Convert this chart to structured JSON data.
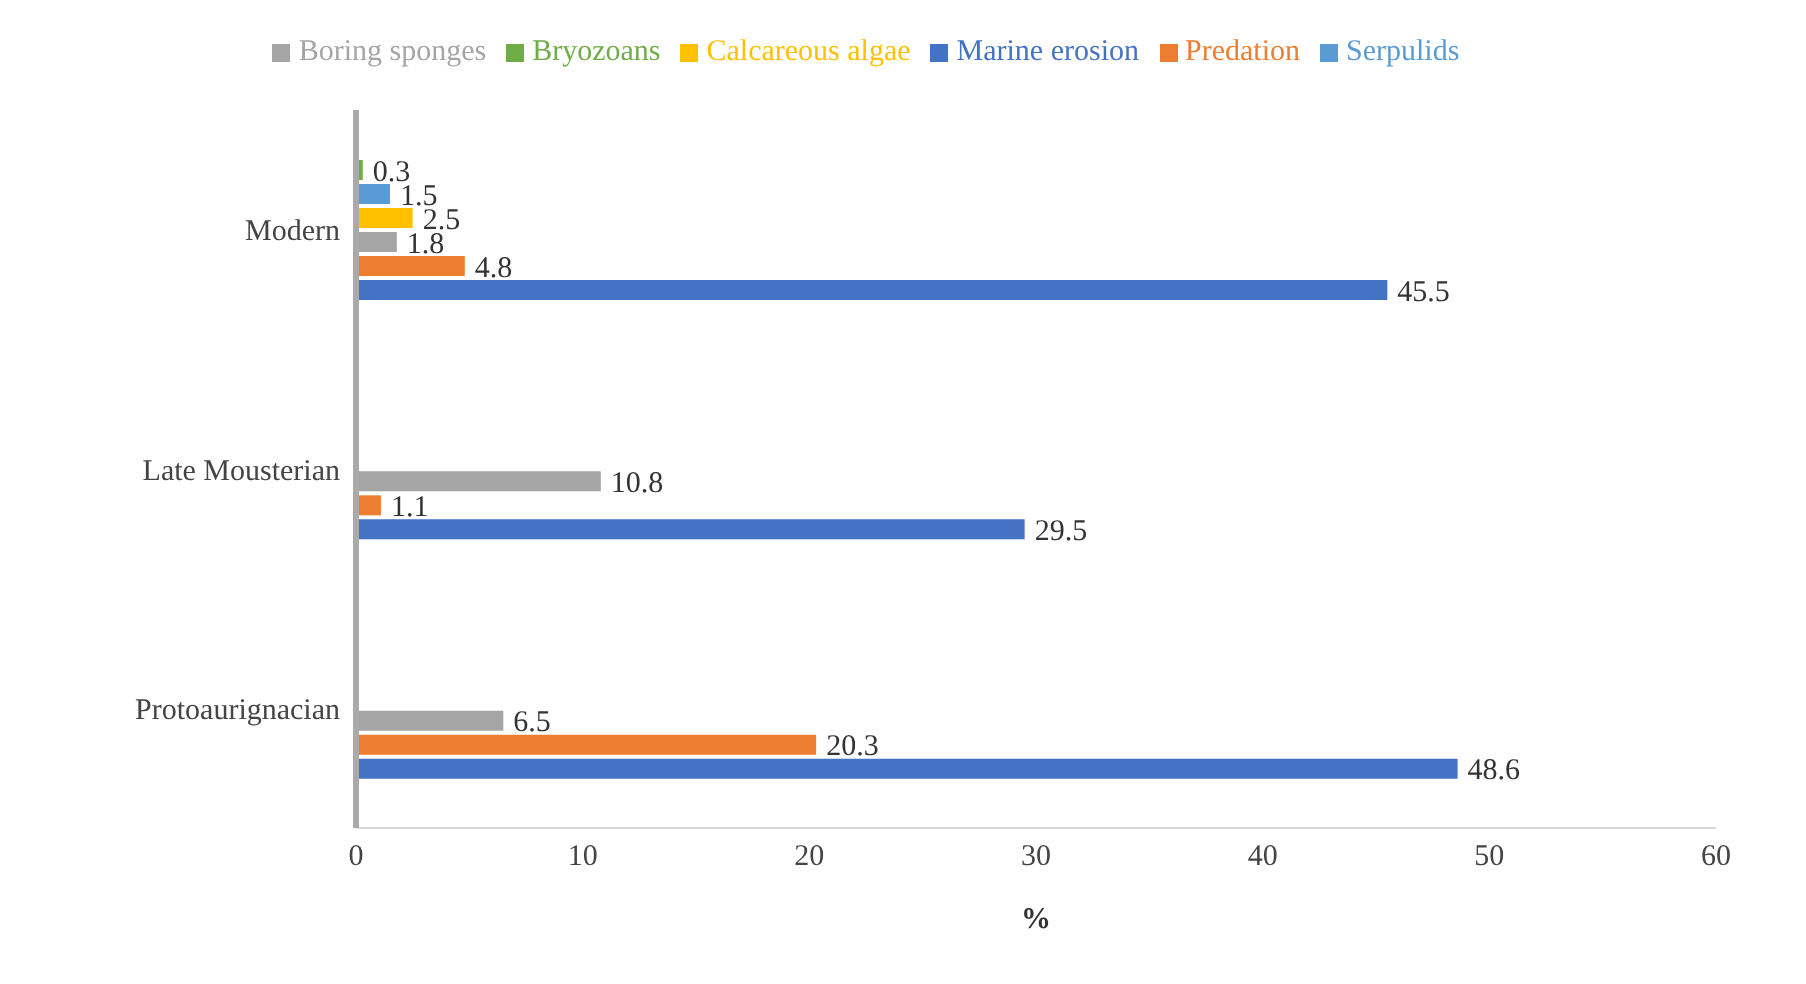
{
  "chart_data": {
    "type": "bar",
    "orientation": "horizontal",
    "categories": [
      "Modern",
      "Late Mousterian",
      "Protoaurignacian"
    ],
    "series": [
      {
        "name": "Bryozoans",
        "color": "#70ad47",
        "values": [
          0.3,
          null,
          null
        ]
      },
      {
        "name": "Serpulids",
        "color": "#5b9bd5",
        "values": [
          1.5,
          null,
          null
        ]
      },
      {
        "name": "Calcareous algae",
        "color": "#ffc000",
        "values": [
          2.5,
          null,
          null
        ]
      },
      {
        "name": "Boring sponges",
        "color": "#a5a5a5",
        "values": [
          1.8,
          10.8,
          6.5
        ]
      },
      {
        "name": "Predation",
        "color": "#ed7d31",
        "values": [
          4.8,
          1.1,
          20.3
        ]
      },
      {
        "name": "Marine erosion",
        "color": "#4472c4",
        "values": [
          45.5,
          29.5,
          48.6
        ]
      }
    ],
    "xlim": [
      0,
      60
    ],
    "xticks": [
      0,
      10,
      20,
      30,
      40,
      50,
      60
    ],
    "xlabel": "%",
    "data_labels": true,
    "legend": "top",
    "grid": false
  }
}
